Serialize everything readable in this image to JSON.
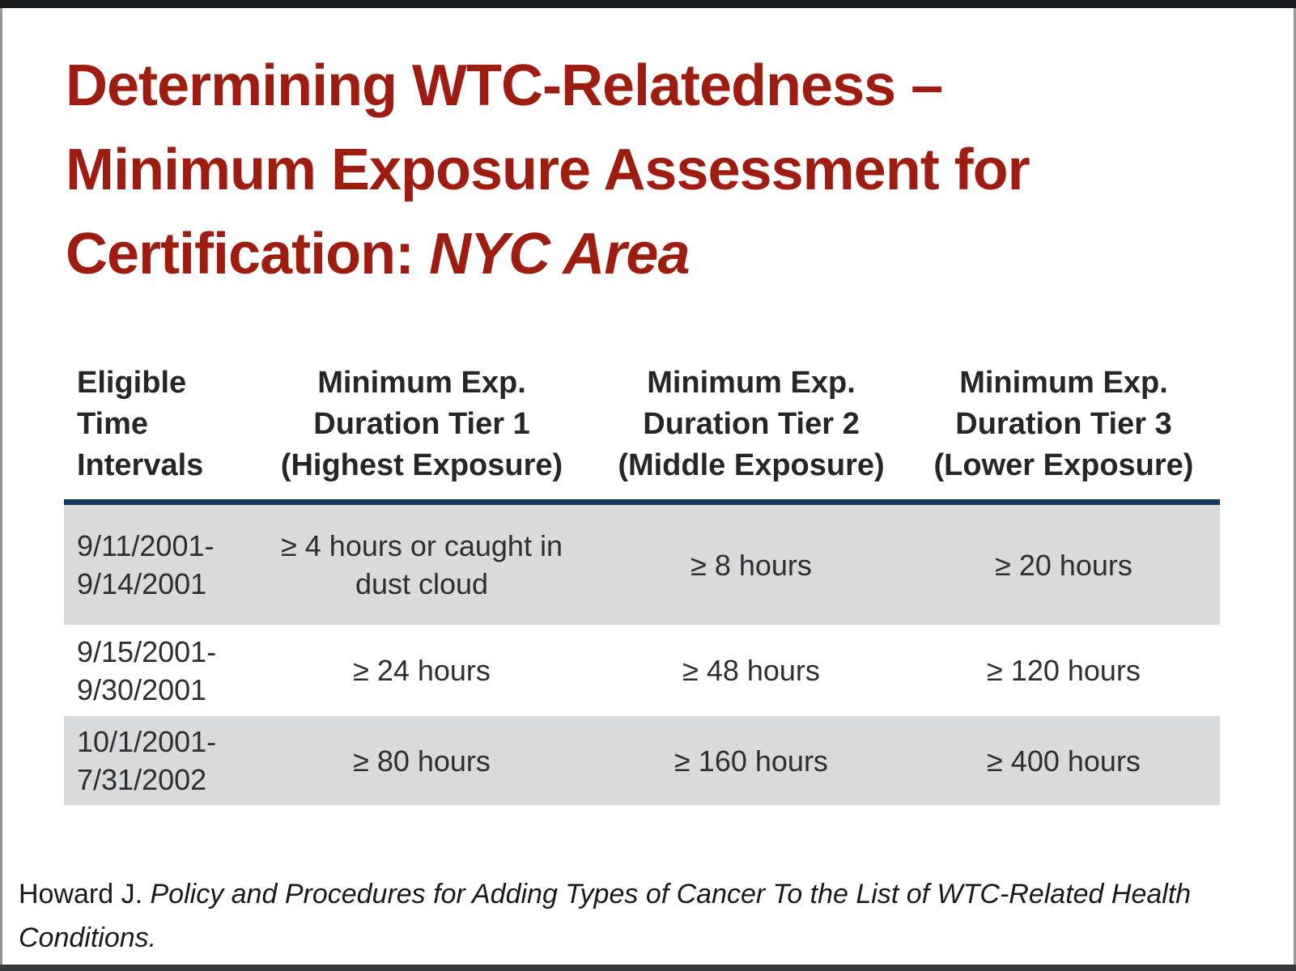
{
  "title": {
    "line1": "Determining WTC-Relatedness –",
    "line2": "Minimum Exposure Assessment for",
    "line3_prefix": "Certification: ",
    "line3_italic": "NYC Area"
  },
  "table": {
    "headers": [
      "Eligible\nTime\nIntervals",
      "Minimum Exp.\nDuration Tier 1\n(Highest Exposure)",
      "Minimum Exp.\nDuration Tier 2\n(Middle Exposure)",
      "Minimum Exp.\nDuration Tier 3\n(Lower Exposure)"
    ],
    "rows": [
      {
        "cells": [
          "9/11/2001-\n9/14/2001",
          "≥ 4 hours or caught in\ndust cloud",
          "≥ 8 hours",
          "≥ 20 hours"
        ]
      },
      {
        "cells": [
          "9/15/2001-\n9/30/2001",
          "≥ 24 hours",
          "≥ 48 hours",
          "≥ 120 hours"
        ]
      },
      {
        "cells": [
          "10/1/2001-\n7/31/2002",
          "≥ 80 hours",
          "≥ 160 hours",
          "≥ 400 hours"
        ]
      }
    ]
  },
  "citation": {
    "prefix": "Howard J. ",
    "italic": "Policy and Procedures for Adding Types of Cancer To the List of WTC-Related Health Conditions."
  },
  "colors": {
    "title_red": "#9e1c10",
    "header_rule_navy": "#17375e",
    "row_shade_gray": "#d8dbdd",
    "text_dark": "#262626"
  }
}
